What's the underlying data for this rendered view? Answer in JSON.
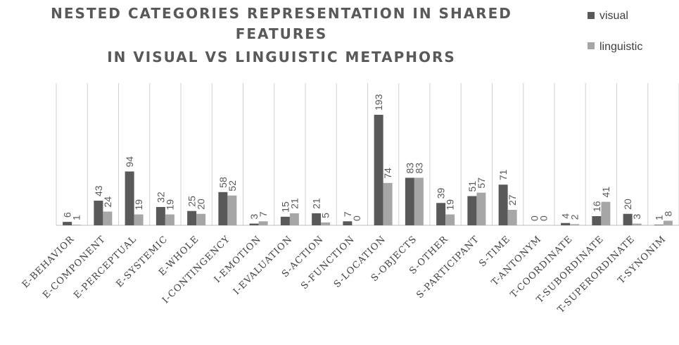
{
  "chart_data": {
    "type": "bar",
    "title": [
      "NESTED CATEGORIES REPRESENTATION IN SHARED",
      "FEATURES",
      "IN VISUAL VS LINGUISTIC METAPHORS"
    ],
    "categories": [
      "E-BEHAVIOR",
      "E-COMPONENT",
      "E-PERCEPTUAL",
      "E-SYSTEMIC",
      "E-WHOLE",
      "I-CONTINGENCY",
      "I-EMOTION",
      "I-EVALUATION",
      "S-ACTION",
      "S-FUNCTION",
      "S-LOCATION",
      "S-OBJECTS",
      "S-OTHER",
      "S-PARTICIPANT",
      "S-TIME",
      "T-ANTONYM",
      "T-COORDINATE",
      "T-SUBORDINATE",
      "T-SUPERORDINATE",
      "T-SYNONIM"
    ],
    "series": [
      {
        "name": "visual",
        "color": "#595959",
        "values": [
          6,
          43,
          94,
          32,
          25,
          58,
          3,
          15,
          21,
          7,
          193,
          83,
          39,
          51,
          71,
          0,
          4,
          16,
          20,
          1
        ]
      },
      {
        "name": "linguistic",
        "color": "#a6a6a6",
        "values": [
          1,
          24,
          19,
          19,
          20,
          52,
          7,
          21,
          5,
          0,
          74,
          83,
          19,
          57,
          27,
          0,
          2,
          41,
          3,
          8
        ]
      }
    ],
    "ylim": [
      0,
      250
    ],
    "xlabel": "",
    "ylabel": "",
    "grid": "vertical category separators",
    "legend": "top-right"
  }
}
